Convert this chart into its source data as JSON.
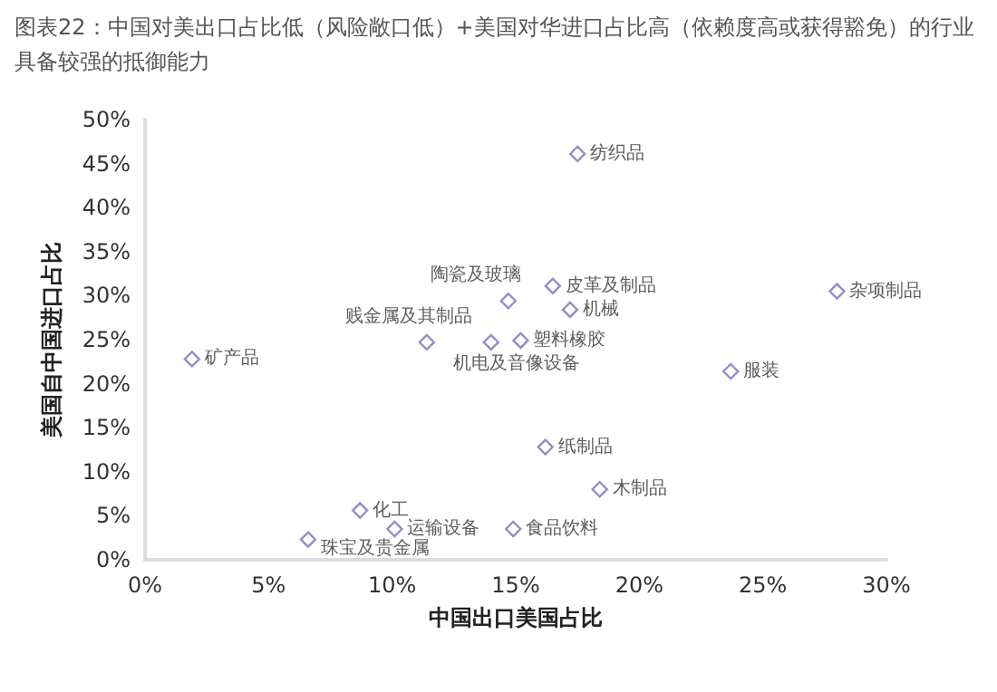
{
  "chart_data": {
    "type": "scatter",
    "title": "图表22：中国对美出口占比低（风险敞口低）+美国对华进口占比高（依赖度高或获得豁免）的行业具备较强的抵御能力",
    "xlabel": "中国出口美国占比",
    "ylabel": "美国自中国进口占比",
    "x": [
      17.5,
      14.7,
      16.5,
      17.2,
      28.0,
      11.4,
      14.0,
      15.2,
      1.9,
      23.7,
      16.2,
      18.4,
      14.9,
      8.7,
      10.1,
      6.6
    ],
    "values": [
      46.1,
      29.4,
      31.1,
      28.4,
      30.5,
      24.7,
      24.7,
      24.9,
      22.8,
      21.4,
      12.8,
      8.0,
      3.5,
      5.6,
      3.5,
      2.3
    ],
    "color": "#7b6fc0",
    "marker": "diamond",
    "grid": false,
    "xlim": [
      0,
      30
    ],
    "xticks": [
      {
        "value": 0,
        "label": "0%"
      },
      {
        "value": 5,
        "label": "5%"
      },
      {
        "value": 10,
        "label": "10%"
      },
      {
        "value": 15,
        "label": "15%"
      },
      {
        "value": 20,
        "label": "20%"
      },
      {
        "value": 25,
        "label": "25%"
      },
      {
        "value": 30,
        "label": "30%"
      }
    ],
    "ylim": [
      0,
      50
    ],
    "yticks": [
      {
        "value": 0,
        "label": "0%"
      },
      {
        "value": 5,
        "label": "5%"
      },
      {
        "value": 10,
        "label": "10%"
      },
      {
        "value": 15,
        "label": "15%"
      },
      {
        "value": 20,
        "label": "20%"
      },
      {
        "value": 25,
        "label": "25%"
      },
      {
        "value": 30,
        "label": "30%"
      },
      {
        "value": 35,
        "label": "35%"
      },
      {
        "value": 40,
        "label": "40%"
      },
      {
        "value": 45,
        "label": "45%"
      },
      {
        "value": 50,
        "label": "50%"
      }
    ],
    "annotations": [
      {
        "text": "纺织品",
        "x": 17.5,
        "y": 46.1
      },
      {
        "text": "陶瓷及玻璃",
        "x": 14.7,
        "y": 29.4
      },
      {
        "text": "皮革及制品",
        "x": 16.5,
        "y": 31.1
      },
      {
        "text": "机械",
        "x": 17.2,
        "y": 28.4
      },
      {
        "text": "杂项制品",
        "x": 28.0,
        "y": 30.5
      },
      {
        "text": "贱金属及其制品",
        "x": 11.4,
        "y": 24.7
      },
      {
        "text": "机电及音像设备",
        "x": 14.0,
        "y": 24.7
      },
      {
        "text": "塑料橡胶",
        "x": 15.2,
        "y": 24.9
      },
      {
        "text": "矿产品",
        "x": 1.9,
        "y": 22.8
      },
      {
        "text": "服装",
        "x": 23.7,
        "y": 21.4
      },
      {
        "text": "纸制品",
        "x": 16.2,
        "y": 12.8
      },
      {
        "text": "木制品",
        "x": 18.4,
        "y": 8.0
      },
      {
        "text": "食品饮料",
        "x": 14.9,
        "y": 3.5
      },
      {
        "text": "化工",
        "x": 8.7,
        "y": 5.6
      },
      {
        "text": "运输设备",
        "x": 10.1,
        "y": 3.5
      },
      {
        "text": "珠宝及贵金属",
        "x": 6.6,
        "y": 2.3
      }
    ]
  }
}
